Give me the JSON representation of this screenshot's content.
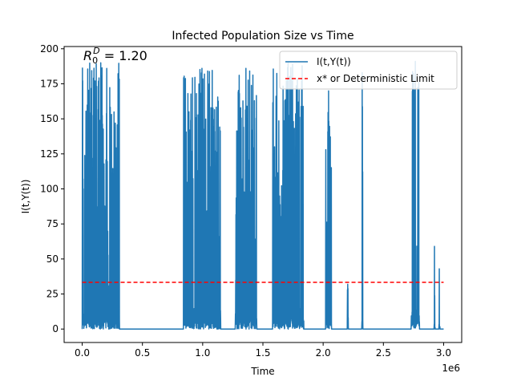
{
  "chart_data": {
    "type": "line",
    "title": "Infected Population Size vs Time",
    "xlabel": "Time",
    "ylabel": "I(t,Y(t))",
    "x_offset_label": "1e6",
    "annotation": {
      "base": "R",
      "sup": "D",
      "sub": "0",
      "rest": " = 1.20"
    },
    "xlim": [
      -0.15,
      3.15
    ],
    "ylim": [
      -9.6,
      201.6
    ],
    "x_ticks": [
      0.0,
      0.5,
      1.0,
      1.5,
      2.0,
      2.5,
      3.0
    ],
    "x_tick_labels": [
      "0.0",
      "0.5",
      "1.0",
      "1.5",
      "2.0",
      "2.5",
      "3.0"
    ],
    "y_ticks": [
      0,
      25,
      50,
      75,
      100,
      125,
      150,
      175,
      200
    ],
    "y_tick_labels": [
      "0",
      "25",
      "50",
      "75",
      "100",
      "125",
      "150",
      "175",
      "200"
    ],
    "legend_position": "top-right",
    "series": [
      {
        "name": "I(t,Y(t))",
        "color": "#1f77b4",
        "style": "solid",
        "bursts": [
          {
            "start": 0.0,
            "end": 0.31,
            "peak": 190
          },
          {
            "start": 0.84,
            "end": 1.15,
            "peak": 186
          },
          {
            "start": 1.27,
            "end": 1.45,
            "peak": 186
          },
          {
            "start": 1.58,
            "end": 1.84,
            "peak": 190
          },
          {
            "start": 2.02,
            "end": 2.07,
            "peak": 170
          },
          {
            "start": 2.2,
            "end": 2.21,
            "peak": 32
          },
          {
            "start": 2.32,
            "end": 2.33,
            "peak": 183
          },
          {
            "start": 2.73,
            "end": 2.8,
            "peak": 191
          },
          {
            "start": 2.92,
            "end": 2.93,
            "peak": 59
          },
          {
            "start": 2.96,
            "end": 2.97,
            "peak": 43
          }
        ]
      },
      {
        "name": "x* or Deterministic Limit",
        "color": "#ff0000",
        "style": "dashed",
        "y": 33.3,
        "x_range": [
          0.0,
          3.0
        ]
      }
    ]
  }
}
